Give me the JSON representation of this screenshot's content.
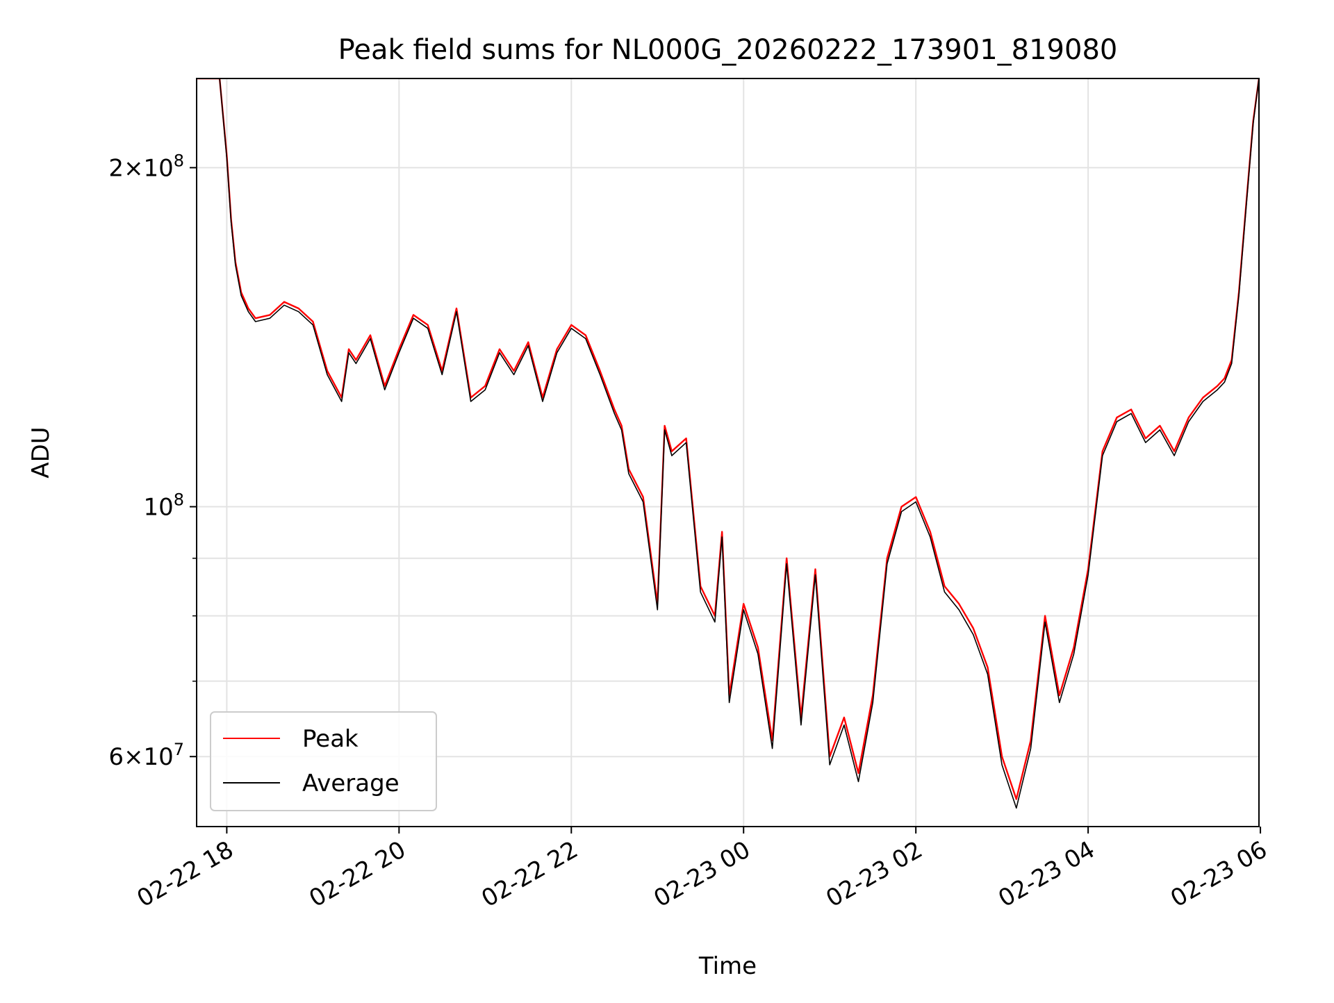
{
  "chart_data": {
    "type": "line",
    "title": "Peak field sums for NL000G_20260222_173901_819080",
    "xlabel": "Time",
    "ylabel": "ADU",
    "yscale": "log",
    "xlim": [
      "2026-02-22 17:39",
      "2026-02-23 05:59"
    ],
    "ylim": [
      52000000,
      240000000
    ],
    "grid": true,
    "legend_position": "lower-left",
    "x_ticks": [
      {
        "t": "2026-02-22 18:00",
        "label": "02-22 18"
      },
      {
        "t": "2026-02-22 20:00",
        "label": "02-22 20"
      },
      {
        "t": "2026-02-22 22:00",
        "label": "02-22 22"
      },
      {
        "t": "2026-02-23 00:00",
        "label": "02-23 00"
      },
      {
        "t": "2026-02-23 02:00",
        "label": "02-23 02"
      },
      {
        "t": "2026-02-23 04:00",
        "label": "02-23 04"
      },
      {
        "t": "2026-02-23 06:00",
        "label": "02-23 06"
      }
    ],
    "y_ticks_major": [
      {
        "v": 200000000,
        "mant": "2",
        "exp": "8"
      },
      {
        "v": 100000000,
        "mant": "",
        "exp": "8"
      },
      {
        "v": 60000000,
        "mant": "6",
        "exp": "7"
      }
    ],
    "y_ticks_minor": [
      70000000,
      80000000,
      90000000
    ],
    "series": [
      {
        "name": "Peak",
        "color": "#ff0000",
        "x": [
          "2026-02-22 17:39",
          "2026-02-22 17:55",
          "2026-02-22 18:00",
          "2026-02-22 18:03",
          "2026-02-22 18:06",
          "2026-02-22 18:10",
          "2026-02-22 18:15",
          "2026-02-22 18:20",
          "2026-02-22 18:30",
          "2026-02-22 18:40",
          "2026-02-22 18:50",
          "2026-02-22 19:00",
          "2026-02-22 19:10",
          "2026-02-22 19:20",
          "2026-02-22 19:25",
          "2026-02-22 19:30",
          "2026-02-22 19:40",
          "2026-02-22 19:50",
          "2026-02-22 20:00",
          "2026-02-22 20:10",
          "2026-02-22 20:20",
          "2026-02-22 20:30",
          "2026-02-22 20:40",
          "2026-02-22 20:50",
          "2026-02-22 21:00",
          "2026-02-22 21:10",
          "2026-02-22 21:20",
          "2026-02-22 21:30",
          "2026-02-22 21:40",
          "2026-02-22 21:50",
          "2026-02-22 22:00",
          "2026-02-22 22:10",
          "2026-02-22 22:20",
          "2026-02-22 22:30",
          "2026-02-22 22:35",
          "2026-02-22 22:40",
          "2026-02-22 22:50",
          "2026-02-22 23:00",
          "2026-02-22 23:05",
          "2026-02-22 23:10",
          "2026-02-22 23:20",
          "2026-02-22 23:30",
          "2026-02-22 23:40",
          "2026-02-22 23:45",
          "2026-02-22 23:50",
          "2026-02-23 00:00",
          "2026-02-23 00:10",
          "2026-02-23 00:20",
          "2026-02-23 00:30",
          "2026-02-23 00:40",
          "2026-02-23 00:50",
          "2026-02-23 01:00",
          "2026-02-23 01:10",
          "2026-02-23 01:20",
          "2026-02-23 01:30",
          "2026-02-23 01:40",
          "2026-02-23 01:50",
          "2026-02-23 02:00",
          "2026-02-23 02:10",
          "2026-02-23 02:20",
          "2026-02-23 02:30",
          "2026-02-23 02:40",
          "2026-02-23 02:50",
          "2026-02-23 03:00",
          "2026-02-23 03:10",
          "2026-02-23 03:20",
          "2026-02-23 03:30",
          "2026-02-23 03:40",
          "2026-02-23 03:50",
          "2026-02-23 04:00",
          "2026-02-23 04:10",
          "2026-02-23 04:20",
          "2026-02-23 04:30",
          "2026-02-23 04:40",
          "2026-02-23 04:50",
          "2026-02-23 05:00",
          "2026-02-23 05:10",
          "2026-02-23 05:20",
          "2026-02-23 05:30",
          "2026-02-23 05:35",
          "2026-02-23 05:40",
          "2026-02-23 05:45",
          "2026-02-23 05:50",
          "2026-02-23 05:55",
          "2026-02-23 05:59"
        ],
        "y": [
          240000000,
          240000000,
          205000000,
          180000000,
          165000000,
          155000000,
          150000000,
          147000000,
          148000000,
          152000000,
          150000000,
          146000000,
          132000000,
          125000000,
          138000000,
          135000000,
          142000000,
          128000000,
          138000000,
          148000000,
          145000000,
          132000000,
          150000000,
          125000000,
          128000000,
          138000000,
          132000000,
          140000000,
          125000000,
          138000000,
          145000000,
          142000000,
          132000000,
          122000000,
          118000000,
          108000000,
          102000000,
          82000000,
          118000000,
          112000000,
          115000000,
          85000000,
          80000000,
          95000000,
          68000000,
          82000000,
          75000000,
          62000000,
          90000000,
          65000000,
          88000000,
          60000000,
          65000000,
          58000000,
          68000000,
          90000000,
          100000000,
          102000000,
          95000000,
          85000000,
          82000000,
          78000000,
          72000000,
          60000000,
          55000000,
          62000000,
          80000000,
          68000000,
          75000000,
          88000000,
          112000000,
          120000000,
          122000000,
          115000000,
          118000000,
          112000000,
          120000000,
          125000000,
          128000000,
          130000000,
          135000000,
          155000000,
          185000000,
          220000000,
          240000000
        ]
      },
      {
        "name": "Average",
        "color": "#000000",
        "x": [
          "2026-02-22 17:39",
          "2026-02-22 17:55",
          "2026-02-22 18:00",
          "2026-02-22 18:03",
          "2026-02-22 18:06",
          "2026-02-22 18:10",
          "2026-02-22 18:15",
          "2026-02-22 18:20",
          "2026-02-22 18:30",
          "2026-02-22 18:40",
          "2026-02-22 18:50",
          "2026-02-22 19:00",
          "2026-02-22 19:10",
          "2026-02-22 19:20",
          "2026-02-22 19:25",
          "2026-02-22 19:30",
          "2026-02-22 19:40",
          "2026-02-22 19:50",
          "2026-02-22 20:00",
          "2026-02-22 20:10",
          "2026-02-22 20:20",
          "2026-02-22 20:30",
          "2026-02-22 20:40",
          "2026-02-22 20:50",
          "2026-02-22 21:00",
          "2026-02-22 21:10",
          "2026-02-22 21:20",
          "2026-02-22 21:30",
          "2026-02-22 21:40",
          "2026-02-22 21:50",
          "2026-02-22 22:00",
          "2026-02-22 22:10",
          "2026-02-22 22:20",
          "2026-02-22 22:30",
          "2026-02-22 22:35",
          "2026-02-22 22:40",
          "2026-02-22 22:50",
          "2026-02-22 23:00",
          "2026-02-22 23:05",
          "2026-02-22 23:10",
          "2026-02-22 23:20",
          "2026-02-22 23:30",
          "2026-02-22 23:40",
          "2026-02-22 23:45",
          "2026-02-22 23:50",
          "2026-02-23 00:00",
          "2026-02-23 00:10",
          "2026-02-23 00:20",
          "2026-02-23 00:30",
          "2026-02-23 00:40",
          "2026-02-23 00:50",
          "2026-02-23 01:00",
          "2026-02-23 01:10",
          "2026-02-23 01:20",
          "2026-02-23 01:30",
          "2026-02-23 01:40",
          "2026-02-23 01:50",
          "2026-02-23 02:00",
          "2026-02-23 02:10",
          "2026-02-23 02:20",
          "2026-02-23 02:30",
          "2026-02-23 02:40",
          "2026-02-23 02:50",
          "2026-02-23 03:00",
          "2026-02-23 03:10",
          "2026-02-23 03:20",
          "2026-02-23 03:30",
          "2026-02-23 03:40",
          "2026-02-23 03:50",
          "2026-02-23 04:00",
          "2026-02-23 04:10",
          "2026-02-23 04:20",
          "2026-02-23 04:30",
          "2026-02-23 04:40",
          "2026-02-23 04:50",
          "2026-02-23 05:00",
          "2026-02-23 05:10",
          "2026-02-23 05:20",
          "2026-02-23 05:30",
          "2026-02-23 05:35",
          "2026-02-23 05:40",
          "2026-02-23 05:45",
          "2026-02-23 05:50",
          "2026-02-23 05:55",
          "2026-02-23 05:59"
        ],
        "y": [
          240000000,
          240000000,
          204000000,
          179000000,
          164000000,
          154000000,
          149000000,
          146000000,
          147000000,
          151000000,
          149000000,
          145000000,
          131000000,
          124000000,
          137000000,
          134000000,
          141000000,
          127000000,
          137000000,
          147000000,
          144000000,
          131000000,
          149000000,
          124000000,
          127000000,
          137000000,
          131000000,
          139000000,
          124000000,
          137000000,
          144000000,
          141000000,
          131000000,
          121000000,
          117000000,
          107000000,
          101000000,
          81000000,
          117000000,
          111000000,
          114000000,
          84000000,
          79000000,
          94000000,
          67000000,
          81000000,
          74000000,
          61000000,
          89000000,
          64000000,
          87000000,
          59000000,
          64000000,
          57000000,
          67000000,
          89000000,
          99000000,
          101000000,
          94000000,
          84000000,
          81000000,
          77000000,
          71000000,
          59000000,
          54000000,
          61000000,
          79000000,
          67000000,
          74000000,
          87000000,
          111000000,
          119000000,
          121000000,
          114000000,
          117000000,
          111000000,
          119000000,
          124000000,
          127000000,
          129000000,
          134000000,
          154000000,
          184000000,
          219000000,
          240000000
        ]
      }
    ]
  }
}
